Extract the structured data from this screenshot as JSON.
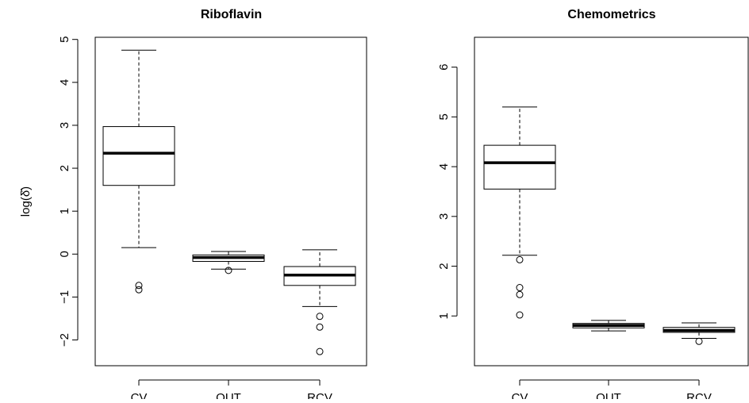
{
  "chart_data": [
    {
      "type": "boxplot",
      "title": "Riboflavin",
      "ylabel": "log(δ̂)",
      "categories": [
        "CV",
        "QUT",
        "RCV"
      ],
      "ylim": [
        -2.6,
        5.05
      ],
      "yticks": [
        -2,
        -1,
        0,
        1,
        2,
        3,
        4,
        5
      ],
      "grid": false,
      "boxes": [
        {
          "category": "CV",
          "lower_whisker": 0.15,
          "q1": 1.6,
          "median": 2.35,
          "q3": 2.97,
          "upper_whisker": 4.75,
          "outliers": [
            -0.73,
            -0.83
          ]
        },
        {
          "category": "QUT",
          "lower_whisker": -0.35,
          "q1": -0.17,
          "median": -0.08,
          "q3": -0.02,
          "upper_whisker": 0.06,
          "outliers": [
            -0.38
          ]
        },
        {
          "category": "RCV",
          "lower_whisker": -1.22,
          "q1": -0.73,
          "median": -0.49,
          "q3": -0.29,
          "upper_whisker": 0.1,
          "outliers": [
            -1.45,
            -1.7,
            -2.27
          ]
        }
      ]
    },
    {
      "type": "boxplot",
      "title": "Chemometrics",
      "ylabel": "",
      "categories": [
        "CV",
        "QUT",
        "RCV"
      ],
      "ylim": [
        0.0,
        6.6
      ],
      "yticks": [
        1,
        2,
        3,
        4,
        5,
        6
      ],
      "grid": false,
      "boxes": [
        {
          "category": "CV",
          "lower_whisker": 2.22,
          "q1": 3.55,
          "median": 4.08,
          "q3": 4.43,
          "upper_whisker": 5.2,
          "outliers": [
            2.13,
            1.57,
            1.43,
            1.02
          ]
        },
        {
          "category": "QUT",
          "lower_whisker": 0.7,
          "q1": 0.76,
          "median": 0.81,
          "q3": 0.85,
          "upper_whisker": 0.91,
          "outliers": []
        },
        {
          "category": "RCV",
          "lower_whisker": 0.55,
          "q1": 0.67,
          "median": 0.71,
          "q3": 0.77,
          "upper_whisker": 0.86,
          "outliers": [
            0.49
          ]
        }
      ]
    }
  ]
}
